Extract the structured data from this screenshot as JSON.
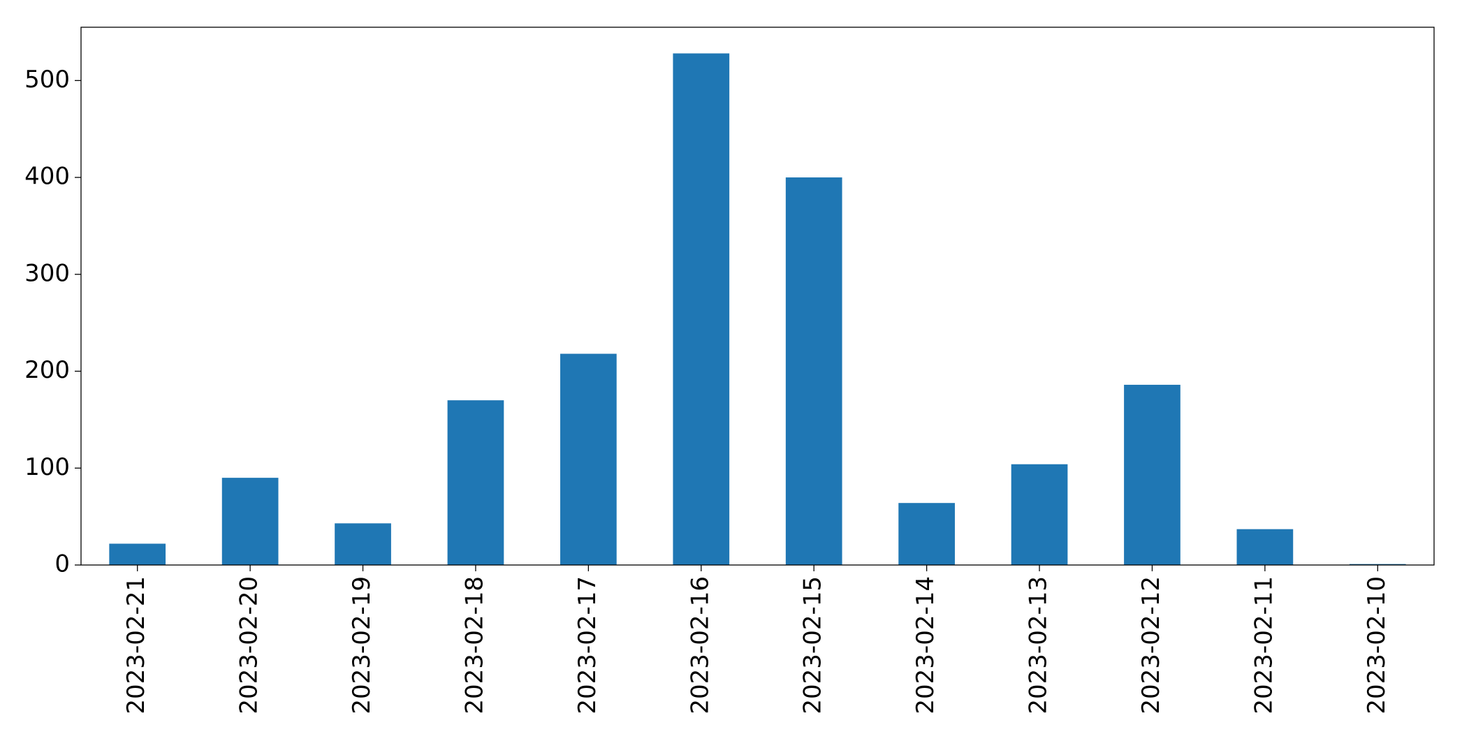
{
  "chart_data": {
    "type": "bar",
    "categories": [
      "2023-02-21",
      "2023-02-20",
      "2023-02-19",
      "2023-02-18",
      "2023-02-17",
      "2023-02-16",
      "2023-02-15",
      "2023-02-14",
      "2023-02-13",
      "2023-02-12",
      "2023-02-11",
      "2023-02-10"
    ],
    "values": [
      22,
      90,
      43,
      170,
      218,
      528,
      400,
      64,
      104,
      186,
      37,
      1
    ],
    "color": "#1f77b4",
    "ylim": [
      0,
      555
    ],
    "yticks": [
      0,
      100,
      200,
      300,
      400,
      500
    ],
    "grid": false
  }
}
